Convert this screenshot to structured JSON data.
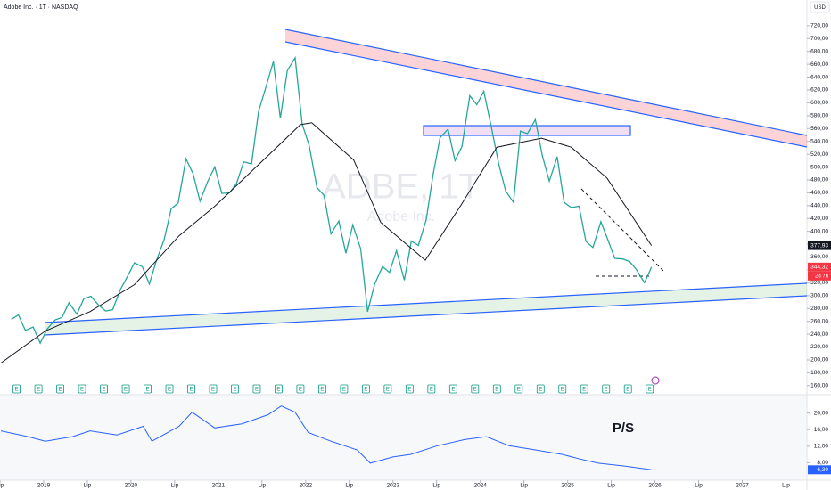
{
  "chart_data": [
    {
      "type": "line",
      "title": "Adobe Inc. · 1T · NASDAQ",
      "currency": "USD",
      "watermark": {
        "symbol": "ADBE, 1T",
        "name": "Adobe Inc."
      },
      "xlim": [
        2018.5,
        2027.74
      ],
      "xticks": [
        {
          "value": 2018.5,
          "label": "Lip"
        },
        2019,
        {
          "value": 2019.5,
          "label": "Lip"
        },
        2020,
        {
          "value": 2020.5,
          "label": "Lip"
        },
        2021,
        {
          "value": 2021.5,
          "label": "Lip"
        },
        2022,
        {
          "value": 2022.5,
          "label": "Lip"
        },
        2023,
        {
          "value": 2023.5,
          "label": "Lip"
        },
        2024,
        {
          "value": 2024.5,
          "label": "Lip"
        },
        2025,
        {
          "value": 2025.5,
          "label": "Lip"
        },
        2026,
        {
          "value": 2026.5,
          "label": "Lip"
        },
        2027,
        {
          "value": 2027.5,
          "label": "Lip"
        }
      ],
      "ylim": [
        150,
        760
      ],
      "yticks": [
        {
          "value": 160,
          "label": "160,00"
        },
        {
          "value": 180,
          "label": "180,00"
        },
        {
          "value": 200,
          "label": "200,00"
        },
        {
          "value": 220,
          "label": "220,00"
        },
        {
          "value": 240,
          "label": "240,00"
        },
        {
          "value": 260,
          "label": "260,00"
        },
        {
          "value": 280,
          "label": "280,00"
        },
        {
          "value": 300,
          "label": "300,00"
        },
        {
          "value": 320,
          "label": "320,00"
        },
        {
          "value": 340,
          "label": "340,00"
        },
        {
          "value": 360,
          "label": "360,00"
        },
        {
          "value": 380,
          "label": "380,00"
        },
        {
          "value": 400,
          "label": "400,00"
        },
        {
          "value": 420,
          "label": "420,00"
        },
        {
          "value": 440,
          "label": "440,00"
        },
        {
          "value": 460,
          "label": "460,00"
        },
        {
          "value": 480,
          "label": "480,00"
        },
        {
          "value": 500,
          "label": "500,00"
        },
        {
          "value": 520,
          "label": "520,00"
        },
        {
          "value": 540,
          "label": "540,00"
        },
        {
          "value": 560,
          "label": "560,00"
        },
        {
          "value": 580,
          "label": "580,00"
        },
        {
          "value": 600,
          "label": "600,00"
        },
        {
          "value": 620,
          "label": "620,00"
        },
        {
          "value": 640,
          "label": "640,00"
        },
        {
          "value": 660,
          "label": "660,00"
        },
        {
          "value": 680,
          "label": "680,00"
        },
        {
          "value": 700,
          "label": "700,00"
        },
        {
          "value": 720,
          "label": "720,00"
        }
      ],
      "series": [
        {
          "color": "#26a69a",
          "x": [
            2018.63,
            2018.71,
            2018.79,
            2018.88,
            2018.96,
            2019.04,
            2019.13,
            2019.21,
            2019.29,
            2019.38,
            2019.46,
            2019.54,
            2019.63,
            2019.71,
            2019.79,
            2019.88,
            2019.96,
            2020.04,
            2020.13,
            2020.21,
            2020.29,
            2020.38,
            2020.46,
            2020.54,
            2020.63,
            2020.71,
            2020.79,
            2020.88,
            2020.96,
            2021.04,
            2021.13,
            2021.21,
            2021.29,
            2021.38,
            2021.46,
            2021.54,
            2021.63,
            2021.71,
            2021.79,
            2021.88,
            2021.96,
            2022.04,
            2022.13,
            2022.21,
            2022.29,
            2022.38,
            2022.46,
            2022.54,
            2022.63,
            2022.71,
            2022.79,
            2022.88,
            2022.96,
            2023.04,
            2023.13,
            2023.21,
            2023.29,
            2023.38,
            2023.46,
            2023.54,
            2023.63,
            2023.71,
            2023.79,
            2023.88,
            2023.96,
            2024.04,
            2024.13,
            2024.21,
            2024.29,
            2024.38,
            2024.46,
            2024.54,
            2024.63,
            2024.71,
            2024.79,
            2024.88,
            2024.96,
            2025.04,
            2025.13,
            2025.21,
            2025.29,
            2025.38,
            2025.46,
            2025.54,
            2025.63,
            2025.71,
            2025.79,
            2025.88,
            2025.96
          ],
          "values": [
            263,
            270,
            246,
            251,
            226,
            248,
            262,
            266,
            289,
            271,
            295,
            299,
            285,
            276,
            278,
            310,
            330,
            351,
            345,
            318,
            354,
            387,
            435,
            444,
            513,
            490,
            447,
            478,
            500,
            459,
            460,
            475,
            508,
            505,
            586,
            622,
            664,
            576,
            650,
            670,
            567,
            534,
            468,
            456,
            396,
            416,
            366,
            410,
            373,
            275,
            318,
            345,
            336,
            370,
            324,
            385,
            378,
            418,
            489,
            546,
            559,
            510,
            532,
            611,
            597,
            618,
            560,
            505,
            463,
            445,
            556,
            552,
            574,
            518,
            478,
            516,
            445,
            437,
            439,
            384,
            375,
            415,
            387,
            358,
            357,
            353,
            340,
            320,
            344.32
          ]
        },
        {
          "color": "#131722",
          "x": [
            2018.51,
            2019.02,
            2019.53,
            2020.04,
            2020.55,
            2020.96,
            2021.57,
            2021.94,
            2022.07,
            2022.55,
            2022.86,
            2023.37,
            2023.78,
            2024.19,
            2024.7,
            2025.04,
            2025.45,
            2025.96
          ],
          "values": [
            195,
            245,
            275,
            317,
            393,
            439,
            518,
            566,
            569,
            511,
            414,
            355,
            441,
            531,
            545,
            531,
            483,
            377.93
          ]
        }
      ],
      "price_labels": [
        {
          "value": 377.93,
          "label": "377,93",
          "color": "#131722"
        },
        {
          "value": 344.32,
          "label": "344,32",
          "color": "#f23645"
        }
      ],
      "countdown": "2d 7h",
      "earnings": {
        "label": "E",
        "color": "#089981",
        "x": [
          2018.69,
          2018.94,
          2019.19,
          2019.44,
          2019.69,
          2019.94,
          2020.19,
          2020.44,
          2020.69,
          2020.94,
          2021.19,
          2021.44,
          2021.69,
          2021.94,
          2022.19,
          2022.44,
          2022.69,
          2022.94,
          2023.19,
          2023.44,
          2023.69,
          2023.94,
          2024.19,
          2024.44,
          2024.69,
          2024.94,
          2025.19,
          2025.44,
          2025.69,
          2025.94
        ]
      }
    },
    {
      "type": "line",
      "label": "P/S",
      "xlim": [
        2018.5,
        2027.74
      ],
      "ylim": [
        4,
        24
      ],
      "yticks": [
        {
          "value": 8,
          "label": "8,00"
        },
        {
          "value": 12,
          "label": "12,00"
        },
        {
          "value": 16,
          "label": "16,00"
        },
        {
          "value": 20,
          "label": "20,00"
        }
      ],
      "last_label": {
        "value": 6.3,
        "label": "6,30"
      },
      "series": [
        {
          "color": "#2962ff",
          "x": [
            2018.51,
            2018.82,
            2019.02,
            2019.33,
            2019.53,
            2019.84,
            2020.14,
            2020.24,
            2020.55,
            2020.7,
            2020.96,
            2021.27,
            2021.57,
            2021.72,
            2021.88,
            2022.03,
            2022.29,
            2022.59,
            2022.74,
            2023.0,
            2023.2,
            2023.51,
            2023.82,
            2024.07,
            2024.33,
            2024.63,
            2024.94,
            2025.14,
            2025.35,
            2025.65,
            2025.96
          ],
          "values": [
            15.7,
            14.3,
            13.2,
            14.3,
            15.7,
            14.7,
            16.8,
            13.2,
            16.8,
            20.2,
            16.4,
            17.4,
            19.6,
            21.7,
            20.2,
            15.3,
            13.2,
            11.1,
            7.9,
            9.4,
            10.0,
            12.1,
            13.6,
            14.3,
            12.1,
            11.1,
            10.0,
            8.9,
            7.9,
            7.2,
            6.3
          ]
        }
      ]
    }
  ]
}
